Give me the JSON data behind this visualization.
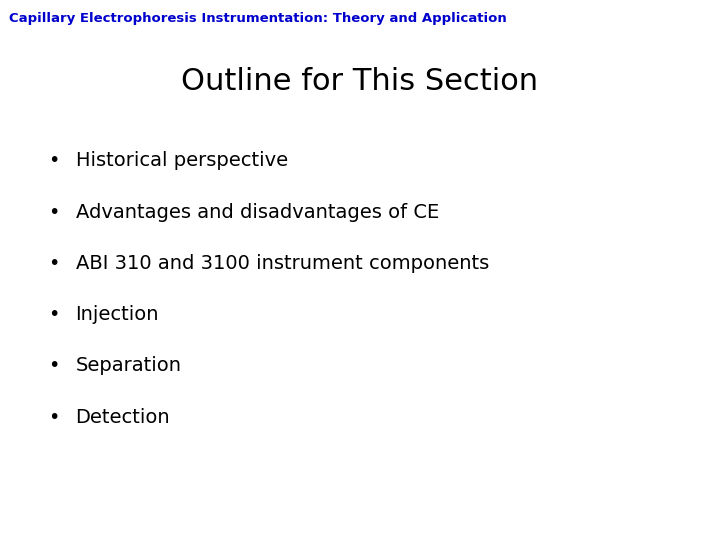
{
  "background_color": "#ffffff",
  "header_text": "Capillary Electrophoresis Instrumentation: Theory and Application",
  "header_color": "#0000cc",
  "header_fontsize": 9.5,
  "title_text": "Outline for This Section",
  "title_fontsize": 22,
  "title_color": "#000000",
  "bullet_items": [
    "Historical perspective",
    "Advantages and disadvantages of CE",
    "ABI 310 and 3100 instrument components",
    "Injection",
    "Separation",
    "Detection"
  ],
  "bullet_color": "#000000",
  "bullet_fontsize": 14,
  "bullet_char": "•",
  "font_family": "DejaVu Sans"
}
